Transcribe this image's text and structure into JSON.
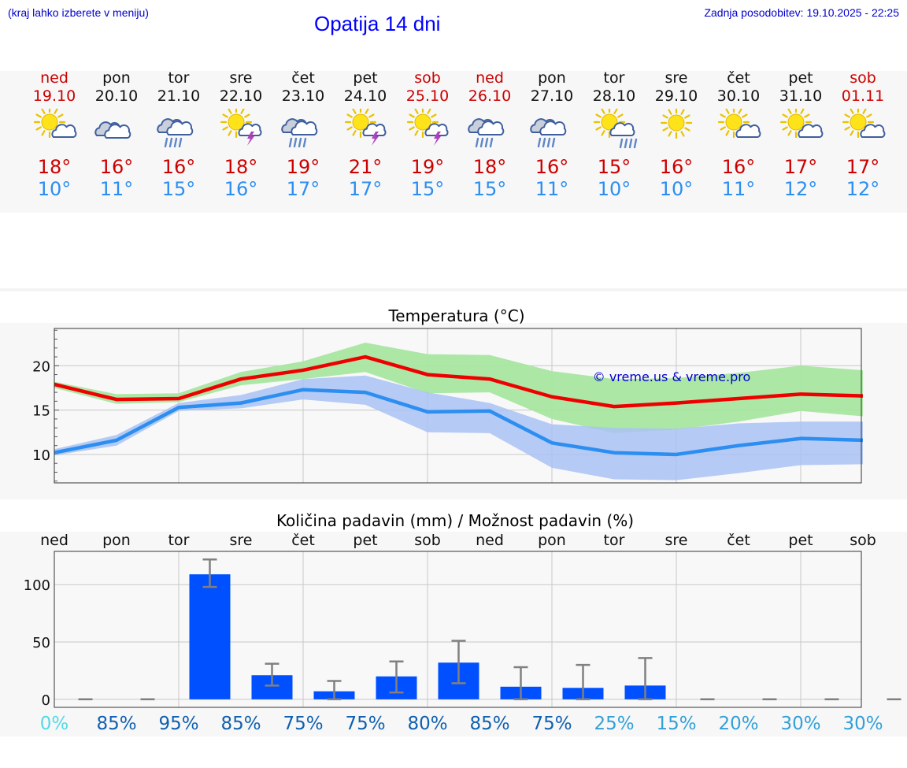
{
  "header": {
    "hint": "(kraj lahko izberete v meniju)",
    "title": "Opatija 14 dni",
    "updated": "Zadnja posodobitev: 19.10.2025 - 22:25"
  },
  "days": [
    {
      "name": "ned",
      "date": "19.10",
      "weekend": true,
      "icon": "sun-cloud-icon",
      "tmax": "18°",
      "tmin": "10°"
    },
    {
      "name": "pon",
      "date": "20.10",
      "weekend": false,
      "icon": "cloudy-icon",
      "tmax": "16°",
      "tmin": "11°"
    },
    {
      "name": "tor",
      "date": "21.10",
      "weekend": false,
      "icon": "rain-cloud-icon",
      "tmax": "16°",
      "tmin": "15°"
    },
    {
      "name": "sre",
      "date": "22.10",
      "weekend": false,
      "icon": "sun-storm-icon",
      "tmax": "18°",
      "tmin": "16°"
    },
    {
      "name": "čet",
      "date": "23.10",
      "weekend": false,
      "icon": "rain-cloud-icon",
      "tmax": "19°",
      "tmin": "17°"
    },
    {
      "name": "pet",
      "date": "24.10",
      "weekend": false,
      "icon": "sun-storm-icon",
      "tmax": "21°",
      "tmin": "17°"
    },
    {
      "name": "sob",
      "date": "25.10",
      "weekend": true,
      "icon": "sun-storm-icon",
      "tmax": "19°",
      "tmin": "15°"
    },
    {
      "name": "ned",
      "date": "26.10",
      "weekend": true,
      "icon": "rain-cloud-icon",
      "tmax": "18°",
      "tmin": "15°"
    },
    {
      "name": "pon",
      "date": "27.10",
      "weekend": false,
      "icon": "rain-cloud-icon",
      "tmax": "16°",
      "tmin": "11°"
    },
    {
      "name": "tor",
      "date": "28.10",
      "weekend": false,
      "icon": "sun-rain-icon",
      "tmax": "15°",
      "tmin": "10°"
    },
    {
      "name": "sre",
      "date": "29.10",
      "weekend": false,
      "icon": "sun-icon",
      "tmax": "16°",
      "tmin": "10°"
    },
    {
      "name": "čet",
      "date": "30.10",
      "weekend": false,
      "icon": "sun-cloud-icon",
      "tmax": "16°",
      "tmin": "11°"
    },
    {
      "name": "pet",
      "date": "31.10",
      "weekend": false,
      "icon": "sun-cloud-icon",
      "tmax": "17°",
      "tmin": "12°"
    },
    {
      "name": "sob",
      "date": "01.11",
      "weekend": true,
      "icon": "sun-cloud-icon",
      "tmax": "17°",
      "tmin": "12°"
    }
  ],
  "colors": {
    "max_line": "#ee0000",
    "min_line": "#2b8ef0",
    "max_band": "#a8e6a0",
    "min_band": "#a9c2f3",
    "overlap_band": "#7fc4a0",
    "bar": "#0050ff",
    "error_bar": "#808080",
    "credit": "#0000cc"
  },
  "chart_data": [
    {
      "type": "line",
      "title": "Temperatura (°C)",
      "annotation": "© vreme.us & vreme.pro",
      "ylim": [
        6.8,
        24.2
      ],
      "yticks": [
        10,
        15,
        20
      ],
      "grid": true,
      "series": [
        {
          "values": [
            17.9,
            16.2,
            16.3,
            18.5,
            19.5,
            21.0,
            19.0,
            18.5,
            16.5,
            15.4,
            15.8,
            16.3,
            16.8,
            16.6
          ],
          "band_low": [
            17.5,
            15.7,
            15.9,
            17.8,
            18.5,
            19.3,
            16.9,
            17.0,
            14.0,
            12.4,
            12.8,
            13.7,
            14.9,
            14.3
          ],
          "band_high": [
            18.2,
            16.8,
            16.9,
            19.3,
            20.5,
            22.6,
            21.3,
            21.2,
            19.4,
            18.5,
            18.6,
            19.2,
            20.0,
            19.5
          ]
        },
        {
          "values": [
            10.2,
            11.6,
            15.3,
            15.8,
            17.3,
            17.0,
            14.8,
            14.9,
            11.3,
            10.2,
            10.0,
            11.0,
            11.8,
            11.6
          ],
          "band_low": [
            9.9,
            11.0,
            14.9,
            15.2,
            16.2,
            15.6,
            12.5,
            12.4,
            8.5,
            7.2,
            7.1,
            7.9,
            8.8,
            8.9
          ],
          "band_high": [
            10.6,
            12.2,
            15.8,
            16.7,
            18.5,
            18.9,
            17.0,
            15.8,
            13.4,
            13.0,
            12.9,
            13.5,
            13.7,
            13.7
          ]
        }
      ]
    },
    {
      "type": "bar",
      "title": "Količina padavin (mm) / Možnost padavin (%)",
      "categories": [
        "ned",
        "pon",
        "tor",
        "sre",
        "čet",
        "pet",
        "sob",
        "ned",
        "pon",
        "tor",
        "sre",
        "čet",
        "pet",
        "sob"
      ],
      "values": [
        0,
        0,
        109,
        21,
        7,
        20,
        32,
        11,
        10,
        12,
        0,
        0,
        0,
        0
      ],
      "error_low": [
        0,
        0,
        98,
        12,
        0,
        6,
        14,
        0,
        0,
        0,
        0,
        0,
        0,
        0
      ],
      "error_high": [
        0,
        0,
        122,
        31,
        16,
        33,
        51,
        28,
        30,
        36,
        0,
        0,
        0,
        0
      ],
      "probability": [
        "0%",
        "85%",
        "95%",
        "85%",
        "75%",
        "75%",
        "80%",
        "85%",
        "75%",
        "25%",
        "15%",
        "20%",
        "30%",
        "30%"
      ],
      "probability_colors": [
        "#55d8e8",
        "#1060b0",
        "#1060b0",
        "#1060b0",
        "#1060b0",
        "#1060b0",
        "#1060b0",
        "#1060b0",
        "#1060b0",
        "#33a0d8",
        "#33a0d8",
        "#33a0d8",
        "#33a0d8",
        "#33a0d8"
      ],
      "ylim": [
        -7,
        129
      ],
      "yticks": [
        0,
        50,
        100
      ],
      "grid": true
    }
  ]
}
